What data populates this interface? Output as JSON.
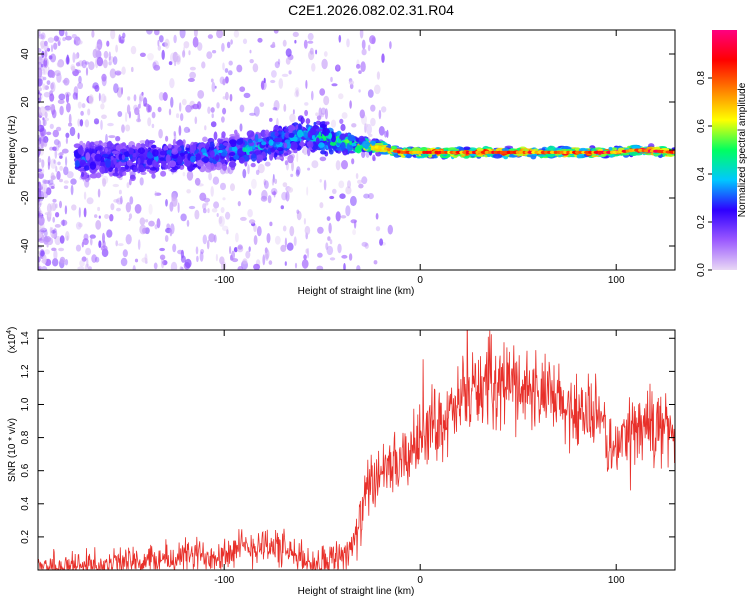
{
  "figure_title": "C2E1.2026.082.02.31.R04",
  "chart_data": [
    {
      "type": "heatmap",
      "title": "C2E1.2026.082.02.31.R04",
      "xlabel": "Height of straight line (km)",
      "ylabel": "Frequency (Hz)",
      "xlim": [
        -195,
        130
      ],
      "ylim": [
        -50,
        50
      ],
      "x_ticks": [
        -100,
        0,
        100
      ],
      "y_ticks": [
        40,
        20,
        0,
        -20,
        -40
      ],
      "colorbar": {
        "label": "Normalized spectral amplitude",
        "range": [
          0,
          1
        ],
        "ticks": [
          0.0,
          0.2,
          0.4,
          0.6,
          0.8
        ],
        "colormap": [
          "#e9d8f5",
          "#9b59ff",
          "#2e00ff",
          "#00c8ff",
          "#00ff60",
          "#ffff00",
          "#ff8000",
          "#ff0000",
          "#ff0080"
        ]
      },
      "signal_track": {
        "x": [
          -170,
          -150,
          -130,
          -110,
          -100,
          -90,
          -80,
          -70,
          -60,
          -50,
          -40,
          -30,
          -20,
          -10,
          0,
          20,
          40,
          60,
          80,
          100,
          110,
          130
        ],
        "center_freq_hz": [
          -4,
          -4,
          -3,
          -2,
          -1,
          0,
          2,
          4,
          7,
          5,
          3,
          2,
          1,
          -1,
          -1,
          -1,
          -1,
          -1,
          -1,
          -1,
          0,
          -1
        ],
        "spread_hz": [
          13,
          13,
          12,
          12,
          11,
          11,
          12,
          12,
          13,
          11,
          7,
          5,
          4,
          3,
          3,
          3,
          3,
          3,
          3,
          3,
          3,
          3
        ],
        "peak_amplitude": [
          0.3,
          0.3,
          0.32,
          0.35,
          0.35,
          0.38,
          0.4,
          0.4,
          0.38,
          0.45,
          0.55,
          0.65,
          0.75,
          0.85,
          0.85,
          0.9,
          0.9,
          0.9,
          0.9,
          0.9,
          0.95,
          0.95
        ]
      }
    },
    {
      "type": "line",
      "title": "",
      "xlabel": "Height of straight line (km)",
      "ylabel": "SNR (10 * v/v)",
      "y_scale_label": "(x10",
      "y_scale_exponent": "4",
      "y_scale_close": ")",
      "xlim": [
        -195,
        130
      ],
      "ylim": [
        0,
        1.45
      ],
      "x_ticks": [
        -100,
        0,
        100
      ],
      "y_ticks": [
        0.2,
        0.4,
        0.6,
        0.8,
        1.0,
        1.2,
        1.4
      ],
      "series": [
        {
          "name": "SNR",
          "color": "#e8302a",
          "x": [
            -195,
            -180,
            -170,
            -160,
            -150,
            -140,
            -130,
            -120,
            -110,
            -100,
            -90,
            -80,
            -75,
            -70,
            -60,
            -55,
            -50,
            -45,
            -40,
            -35,
            -32,
            -30,
            -28,
            -25,
            -22,
            -20,
            -18,
            -15,
            -12,
            -10,
            -7,
            -5,
            -3,
            0,
            3,
            6,
            10,
            14,
            18,
            22,
            26,
            30,
            35,
            40,
            45,
            50,
            55,
            60,
            65,
            70,
            75,
            80,
            85,
            90,
            93,
            96,
            98,
            100,
            103,
            106,
            110,
            115,
            120,
            125,
            130
          ],
          "y": [
            0.02,
            0.02,
            0.03,
            0.03,
            0.04,
            0.05,
            0.06,
            0.08,
            0.09,
            0.1,
            0.13,
            0.16,
            0.15,
            0.12,
            0.06,
            0.04,
            0.05,
            0.07,
            0.1,
            0.14,
            0.22,
            0.32,
            0.45,
            0.55,
            0.5,
            0.52,
            0.6,
            0.65,
            0.62,
            0.64,
            0.66,
            0.72,
            0.75,
            0.8,
            0.85,
            0.88,
            0.9,
            0.92,
            0.95,
            1.05,
            1.08,
            1.1,
            1.13,
            1.15,
            1.13,
            1.12,
            1.1,
            1.07,
            1.05,
            1.0,
            0.97,
            0.97,
            0.95,
            0.92,
            0.88,
            0.78,
            0.7,
            0.72,
            0.8,
            0.84,
            0.86,
            0.88,
            0.87,
            0.86,
            0.85
          ]
        }
      ]
    }
  ]
}
